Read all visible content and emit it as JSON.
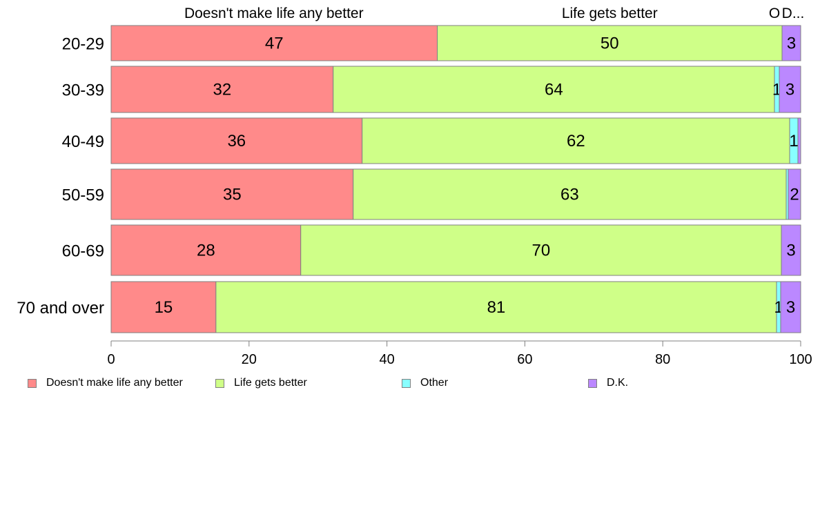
{
  "chart_data": {
    "type": "bar",
    "orientation": "horizontal",
    "stacked": true,
    "categories": [
      "20-29",
      "30-39",
      "40-49",
      "50-59",
      "60-69",
      "70 and over"
    ],
    "series": [
      {
        "name": "Doesn't make life any better",
        "color": "#FF8A8A",
        "values": [
          47.3,
          32.2,
          36.4,
          35.1,
          27.5,
          15.2
        ],
        "labels": [
          "47",
          "32",
          "36",
          "35",
          "28",
          "15"
        ]
      },
      {
        "name": "Life gets better",
        "color": "#CFFF88",
        "values": [
          50.0,
          64.0,
          62.0,
          62.8,
          69.7,
          81.3
        ],
        "labels": [
          "50",
          "64",
          "62",
          "63",
          "70",
          "81"
        ]
      },
      {
        "name": "Other",
        "color": "#88FFFF",
        "values": [
          0.0,
          0.7,
          1.2,
          0.3,
          0.0,
          0.6
        ],
        "labels": [
          "",
          "1",
          "1",
          "",
          "",
          "1"
        ]
      },
      {
        "name": "D.K.",
        "color": "#BB88FF",
        "values": [
          2.7,
          3.1,
          0.4,
          1.8,
          2.8,
          2.9
        ],
        "labels": [
          "3",
          "3",
          "",
          "2",
          "3",
          "3"
        ]
      }
    ],
    "column_headers": [
      {
        "text": "Doesn't make life any better",
        "x": 23.6
      },
      {
        "text": "Life gets better",
        "x": 72.3
      },
      {
        "text": "O",
        "x": 96.2
      },
      {
        "text": "D...",
        "x": 98.9
      }
    ],
    "xlim": [
      0,
      100
    ],
    "xticks": [
      0,
      20,
      40,
      60,
      80,
      100
    ],
    "title": "",
    "xlabel": "",
    "ylabel": "",
    "grid": false,
    "legend_position": "bottom"
  }
}
